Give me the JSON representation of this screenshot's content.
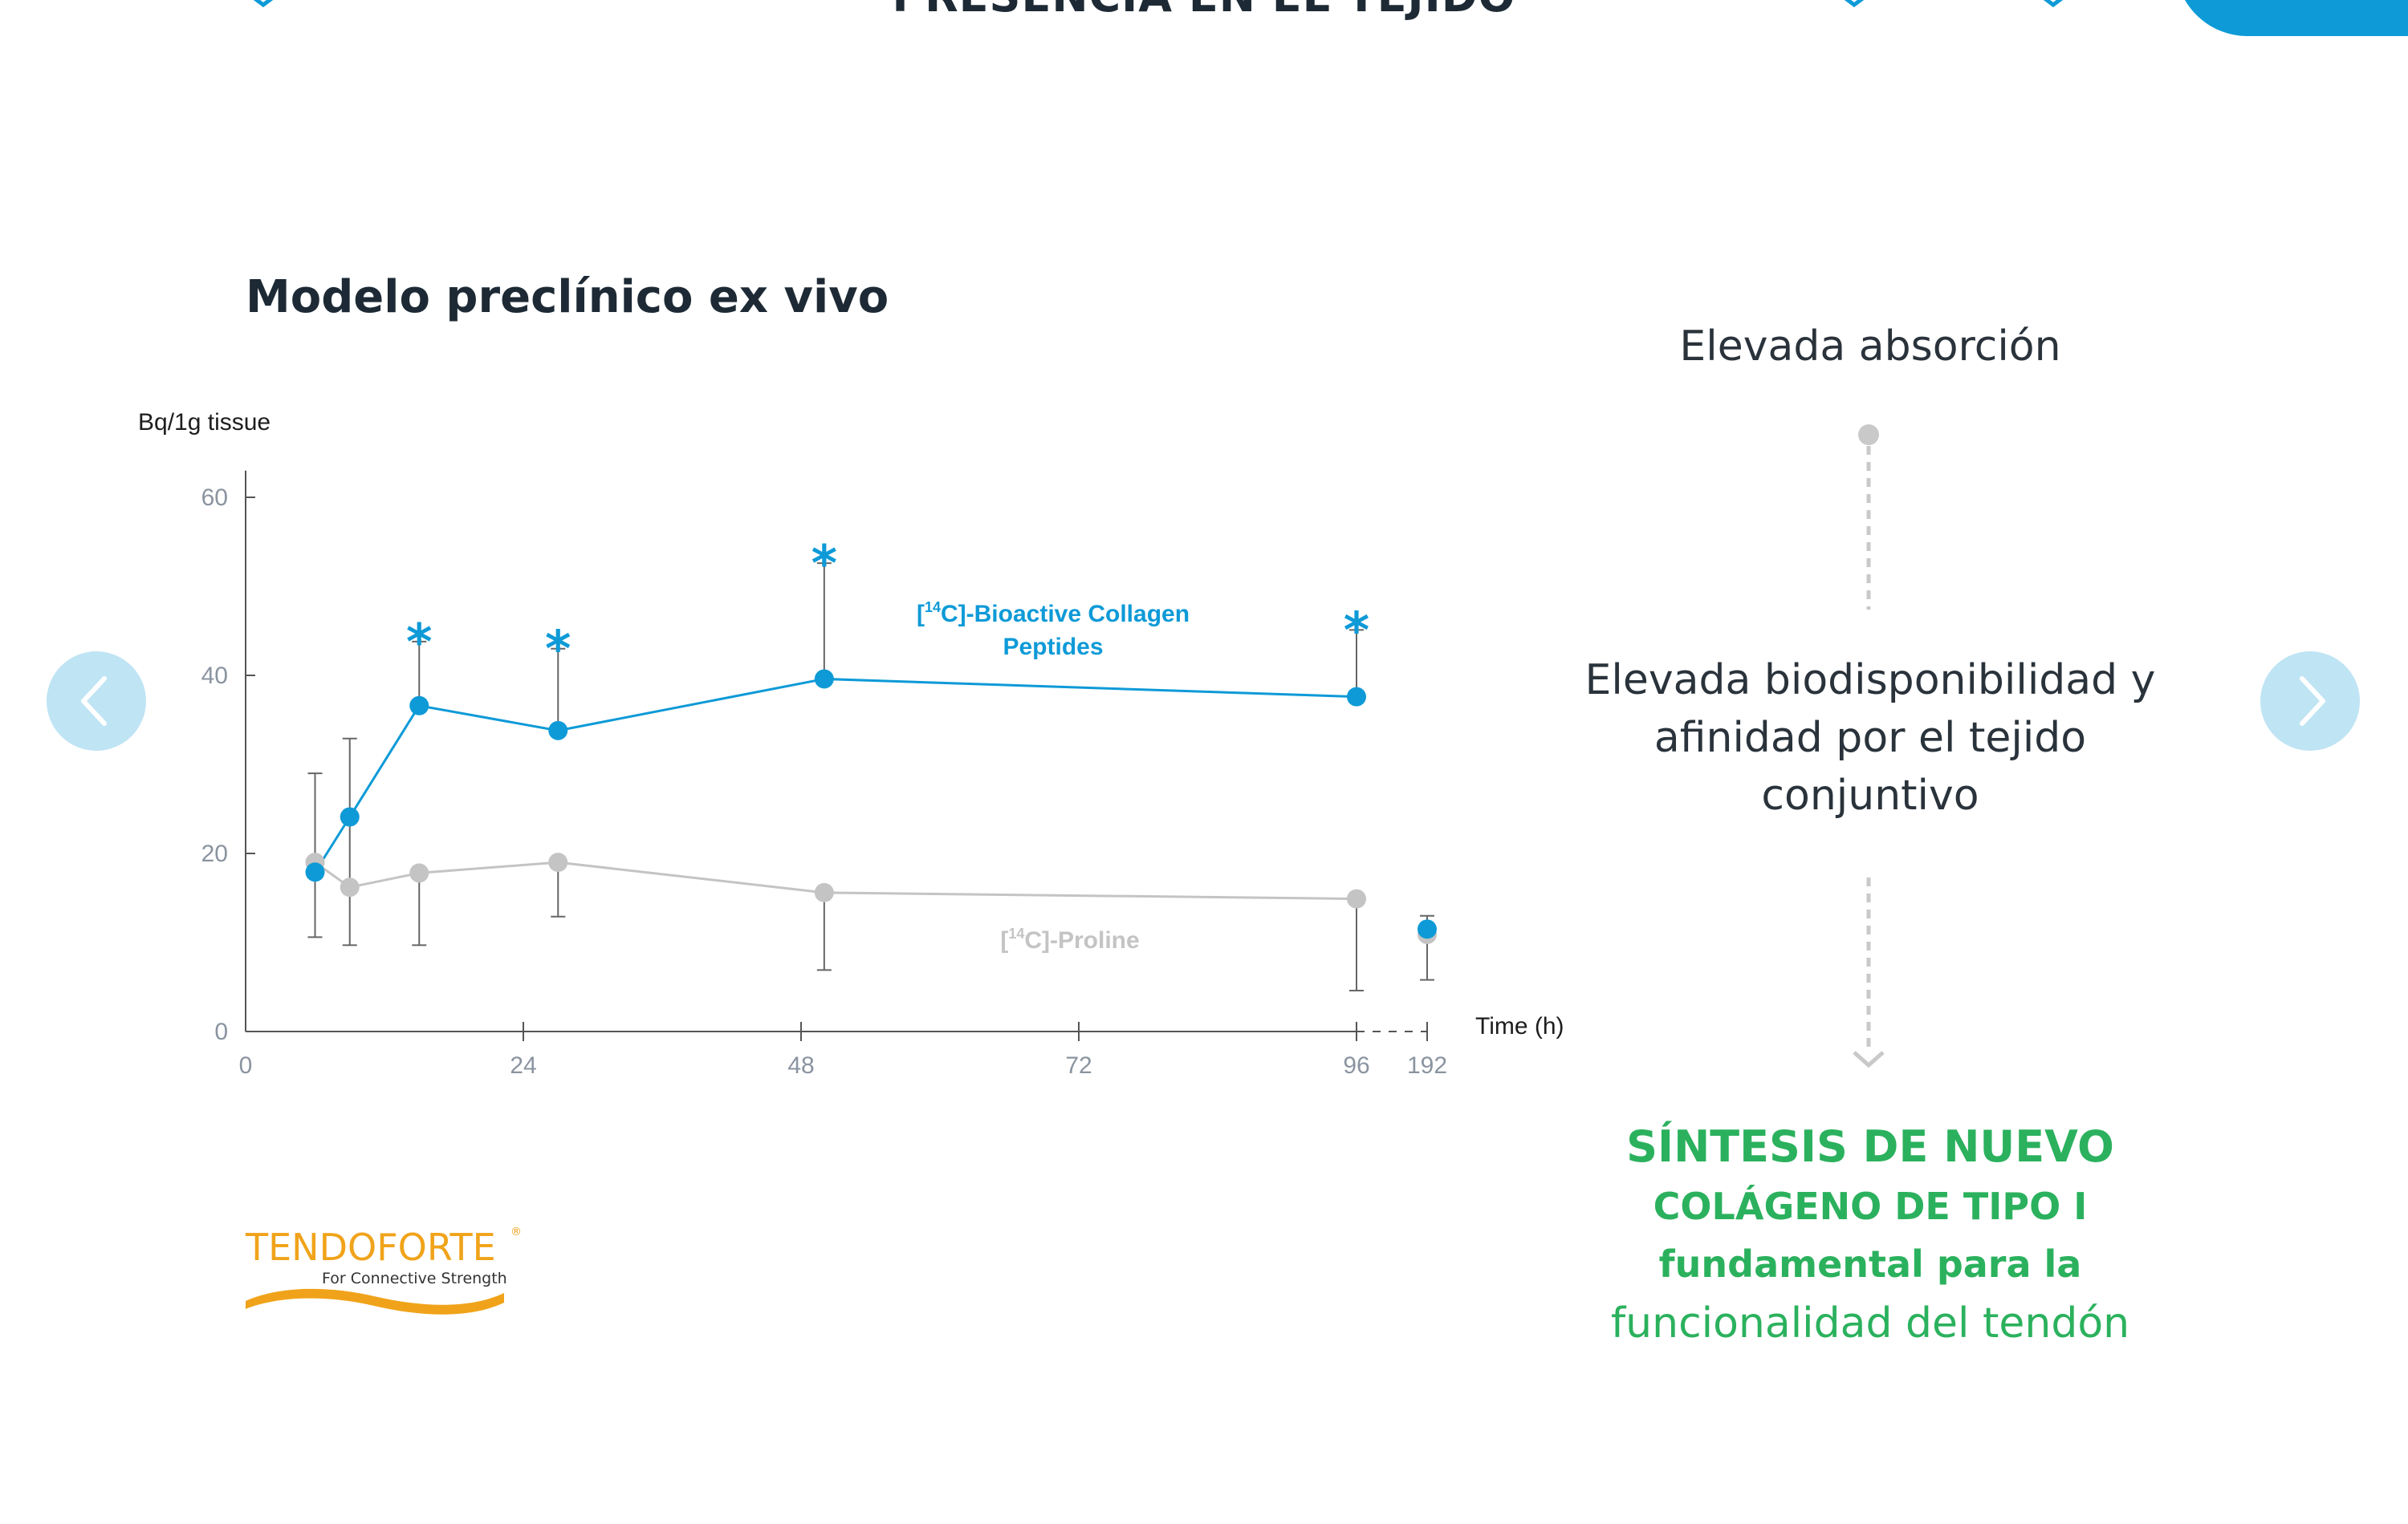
{
  "page": {
    "title": "PRESENCIA EN EL TEJIDO",
    "section_title": "Modelo preclínico ex vivo"
  },
  "nav": {
    "prev_icon": "chevron-left-icon",
    "next_icon": "chevron-right-icon",
    "button_color": "#bfe4f4"
  },
  "flow": {
    "step1": "Elevada absorción",
    "step2_lines": [
      "Elevada biodisponibilidad y",
      "afinidad por el tejido",
      "conjuntivo"
    ],
    "result_l1": "SÍNTESIS DE NUEVO",
    "result_l2": "COLÁGENO DE TIPO I",
    "result_l3": "fundamental para la",
    "result_l4": "funcionalidad del tendón",
    "result_color": "#2bb15d"
  },
  "logo": {
    "name": "TENDOFORTE",
    "reg": "®",
    "tagline": "For Connective Strength"
  },
  "chart_data": {
    "type": "line",
    "ylabel": "Bq/1g tissue",
    "xlabel": "Time (h)",
    "ylim": [
      0,
      60
    ],
    "y_ticks": [
      0,
      20,
      40,
      60
    ],
    "x_ticks": [
      0,
      24,
      48,
      72,
      96,
      192
    ],
    "grid": false,
    "colors": {
      "collagen": "#0e9ad7",
      "proline": "#c4c4c4"
    },
    "series": [
      {
        "name": "[14C]-Bioactive Collagen Peptides",
        "label_lines": [
          "[",
          "14",
          "C]-Bioactive Collagen",
          "Peptides"
        ],
        "x": [
          6,
          9,
          15,
          27,
          50,
          96,
          192
        ],
        "y": [
          17.9,
          24.1,
          36.6,
          33.8,
          39.6,
          37.6,
          11.5
        ],
        "error_upper": [
          null,
          null,
          43.8,
          43.0,
          52.6,
          45.1,
          13.0
        ],
        "error_lower": [
          null,
          null,
          null,
          null,
          null,
          null,
          null
        ],
        "significance": [
          false,
          false,
          true,
          true,
          true,
          true,
          false
        ],
        "significance_mark": "*"
      },
      {
        "name": "[14C]-Proline",
        "label_lines": [
          "[",
          "14",
          "C]-Proline"
        ],
        "x": [
          6,
          9,
          15,
          27,
          50,
          96,
          192
        ],
        "y": [
          19.0,
          16.2,
          17.8,
          19.0,
          15.6,
          14.9,
          10.9
        ],
        "error_upper": [
          29.0,
          32.9,
          null,
          null,
          null,
          null,
          null
        ],
        "error_lower": [
          10.6,
          9.7,
          9.7,
          12.9,
          6.9,
          4.6,
          5.8
        ]
      }
    ]
  }
}
